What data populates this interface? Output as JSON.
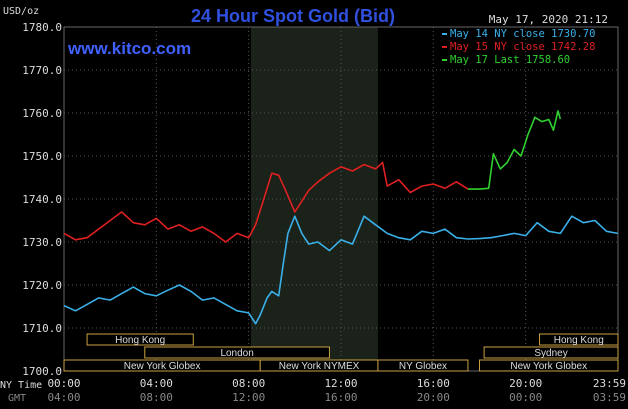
{
  "chart_data": {
    "type": "line",
    "title": "24 Hour Spot Gold (Bid)",
    "watermark": "www.kitco.com",
    "timestamp": "May 17, 2020 21:12",
    "ylabel": "USD/oz",
    "ylim": [
      1700,
      1780
    ],
    "yticks": [
      1700,
      1710,
      1720,
      1730,
      1740,
      1750,
      1760,
      1770,
      1780
    ],
    "ytick_labels": [
      "1700.0",
      "1710.0",
      "1720.0",
      "1730.0",
      "1740.0",
      "1750.0",
      "1760.0",
      "1770.0",
      "1780.0"
    ],
    "xlim": [
      0,
      24
    ],
    "ny_time_label": "NY Time",
    "gmt_label": "GMT",
    "xticks_ny": [
      "00:00",
      "04:00",
      "08:00",
      "12:00",
      "16:00",
      "20:00",
      "23:59"
    ],
    "xticks_gmt": [
      "04:00",
      "08:00",
      "12:00",
      "16:00",
      "20:00",
      "00:00",
      "03:59"
    ],
    "legend": [
      {
        "text": "May 14 NY close 1730.70",
        "color": "#3ab0e8"
      },
      {
        "text": "May 15 NY close 1742.28",
        "color": "#e02020"
      },
      {
        "text": "May 17 Last 1758.60",
        "color": "#30d030"
      }
    ],
    "session_shading": [
      8.1,
      13.6
    ],
    "sessions": [
      {
        "label": "Hong Kong",
        "start": 1.0,
        "end": 5.6,
        "row": 0
      },
      {
        "label": "London",
        "start": 3.5,
        "end": 11.5,
        "row": 1
      },
      {
        "label": "New York Globex",
        "start": 0.0,
        "end": 8.5,
        "row": 2
      },
      {
        "label": "New York NYMEX",
        "start": 8.5,
        "end": 13.6,
        "row": 2
      },
      {
        "label": "NY Globex",
        "start": 13.6,
        "end": 17.5,
        "row": 2
      },
      {
        "label": "Hong Kong",
        "start": 20.6,
        "end": 24.0,
        "row": 0
      },
      {
        "label": "Sydney",
        "start": 18.2,
        "end": 24.0,
        "row": 1
      },
      {
        "label": "New York Globex",
        "start": 18.0,
        "end": 24.0,
        "row": 2
      }
    ],
    "series": [
      {
        "color": "#3ab0e8",
        "x": [
          0,
          0.5,
          1,
          1.5,
          2,
          2.5,
          3,
          3.5,
          4,
          4.5,
          5,
          5.5,
          6,
          6.5,
          7,
          7.5,
          8,
          8.3,
          8.5,
          8.8,
          9,
          9.3,
          9.5,
          9.7,
          10,
          10.3,
          10.6,
          11,
          11.5,
          12,
          12.5,
          13,
          13.5,
          14,
          14.5,
          15,
          15.5,
          16,
          16.5,
          17,
          17.5,
          18,
          18.5,
          19,
          19.5,
          20,
          20.5,
          21,
          21.5,
          22,
          22.5,
          23,
          23.5,
          23.99
        ],
        "values": [
          1715.2,
          1714.0,
          1715.5,
          1717.0,
          1716.5,
          1718.0,
          1719.5,
          1718.0,
          1717.5,
          1718.8,
          1720.0,
          1718.5,
          1716.5,
          1717.0,
          1715.5,
          1714.0,
          1713.5,
          1711.0,
          1713.0,
          1717.0,
          1718.5,
          1717.5,
          1725.0,
          1732.0,
          1736.0,
          1732.0,
          1729.5,
          1730.0,
          1728.0,
          1730.5,
          1729.5,
          1736.0,
          1734.0,
          1732.0,
          1731.0,
          1730.5,
          1732.5,
          1732.0,
          1733.0,
          1731.0,
          1730.7,
          1730.8,
          1731.0,
          1731.5,
          1732.0,
          1731.5,
          1734.5,
          1732.5,
          1732.0,
          1736.0,
          1734.5,
          1735.0,
          1732.5,
          1732.0
        ]
      },
      {
        "color": "#e02020",
        "x": [
          0,
          0.5,
          1,
          1.5,
          2,
          2.5,
          3,
          3.5,
          4,
          4.5,
          5,
          5.5,
          6,
          6.5,
          7,
          7.5,
          8,
          8.3,
          8.6,
          9,
          9.3,
          9.6,
          10,
          10.3,
          10.6,
          11,
          11.5,
          12,
          12.5,
          13,
          13.5,
          13.8,
          14,
          14.5,
          15,
          15.5,
          16,
          16.5,
          17,
          17.5
        ],
        "values": [
          1732.0,
          1730.5,
          1731.0,
          1733.0,
          1735.0,
          1737.0,
          1734.5,
          1734.0,
          1735.5,
          1733.0,
          1734.0,
          1732.5,
          1733.5,
          1732.0,
          1730.0,
          1732.0,
          1731.0,
          1734.0,
          1739.0,
          1746.0,
          1745.5,
          1742.0,
          1737.0,
          1739.5,
          1742.0,
          1744.0,
          1746.0,
          1747.5,
          1746.5,
          1748.0,
          1747.0,
          1748.5,
          1743.0,
          1744.5,
          1741.5,
          1743.0,
          1743.5,
          1742.5,
          1744.0,
          1742.3
        ]
      },
      {
        "color": "#30d030",
        "x": [
          17.5,
          18.0,
          18.4,
          18.6,
          18.9,
          19.2,
          19.5,
          19.8,
          20.1,
          20.4,
          20.7,
          21.0,
          21.2,
          21.4,
          21.5
        ],
        "values": [
          1742.3,
          1742.3,
          1742.5,
          1750.5,
          1747.0,
          1748.5,
          1751.5,
          1750.0,
          1755.0,
          1759.0,
          1758.0,
          1758.5,
          1756.0,
          1760.5,
          1758.6
        ]
      }
    ]
  }
}
